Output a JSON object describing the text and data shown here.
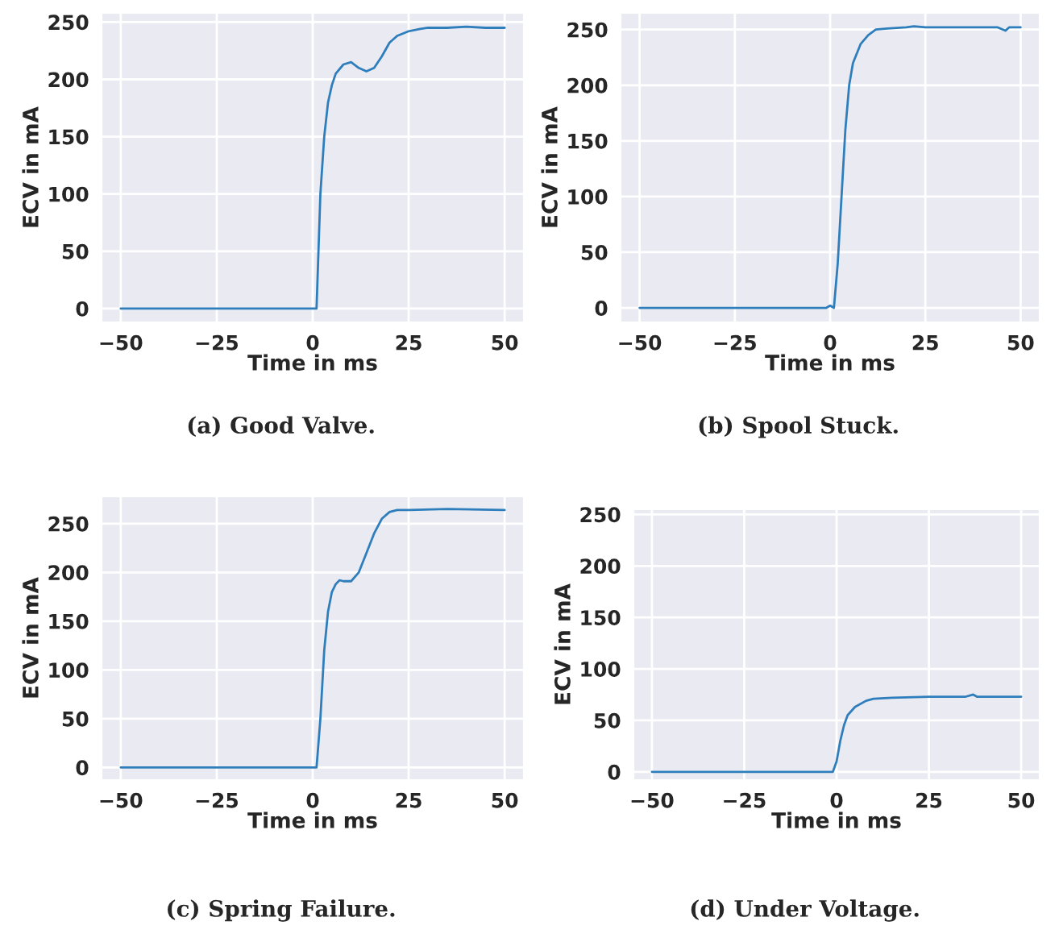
{
  "chart_data": [
    {
      "type": "line",
      "title": "(a) Good Valve.",
      "xlabel": "Time in ms",
      "ylabel": "ECV in mA",
      "grid": true,
      "xlim": [
        -55,
        55
      ],
      "ylim": [
        -12,
        258
      ],
      "xticks": [
        -50,
        -25,
        0,
        25,
        50
      ],
      "yticks": [
        0,
        50,
        100,
        150,
        200,
        250
      ],
      "x": [
        -50,
        -25,
        0,
        1,
        1.5,
        2,
        3,
        4,
        5,
        6,
        8,
        10,
        12,
        14,
        16,
        18,
        20,
        22,
        25,
        28,
        30,
        35,
        40,
        45,
        50
      ],
      "series": [
        {
          "color": "#2f7ebc",
          "values": [
            0,
            0,
            0,
            0,
            50,
            100,
            150,
            180,
            195,
            205,
            213,
            215,
            210,
            207,
            210,
            220,
            232,
            238,
            242,
            244,
            245,
            245,
            246,
            245,
            245
          ]
        }
      ]
    },
    {
      "type": "line",
      "title": "(b) Spool Stuck.",
      "xlabel": "Time in ms",
      "ylabel": "ECV in mA",
      "grid": true,
      "xlim": [
        -55,
        55
      ],
      "ylim": [
        -13,
        265
      ],
      "xticks": [
        -50,
        -25,
        0,
        25,
        50
      ],
      "yticks": [
        0,
        50,
        100,
        150,
        200,
        250
      ],
      "x": [
        -50,
        -25,
        -1,
        0,
        1,
        2,
        3,
        4,
        5,
        6,
        8,
        10,
        12,
        15,
        20,
        22,
        25,
        30,
        40,
        44,
        46,
        47,
        50
      ],
      "series": [
        {
          "color": "#2f7ebc",
          "values": [
            0,
            0,
            0,
            2,
            0,
            40,
            100,
            160,
            200,
            220,
            237,
            245,
            250,
            251,
            252,
            253,
            252,
            252,
            252,
            252,
            249,
            252,
            252
          ]
        }
      ]
    },
    {
      "type": "line",
      "title": "(c) Spring Failure.",
      "xlabel": "Time in ms",
      "ylabel": "ECV in mA",
      "grid": true,
      "xlim": [
        -55,
        55
      ],
      "ylim": [
        -13,
        278
      ],
      "xticks": [
        -50,
        -25,
        0,
        25,
        50
      ],
      "yticks": [
        0,
        50,
        100,
        150,
        200,
        250
      ],
      "x": [
        -50,
        -25,
        0,
        1,
        2,
        3,
        4,
        5,
        6,
        7,
        8,
        10,
        12,
        14,
        16,
        18,
        20,
        22,
        25,
        35,
        50
      ],
      "series": [
        {
          "color": "#2f7ebc",
          "values": [
            0,
            0,
            0,
            0,
            50,
            120,
            160,
            180,
            188,
            192,
            191,
            191,
            200,
            220,
            240,
            255,
            262,
            264,
            264,
            265,
            264
          ]
        }
      ]
    },
    {
      "type": "line",
      "title": "(d) Under Voltage.",
      "xlabel": "Time in ms",
      "ylabel": "ECV in mA",
      "grid": true,
      "xlim": [
        -55,
        55
      ],
      "ylim": [
        -8,
        255
      ],
      "xticks": [
        -50,
        -25,
        0,
        25,
        50
      ],
      "yticks": [
        0,
        50,
        100,
        150,
        200,
        250
      ],
      "x": [
        -50,
        -25,
        -1,
        0,
        1,
        2,
        3,
        5,
        8,
        10,
        15,
        25,
        35,
        37,
        38,
        45,
        50
      ],
      "series": [
        {
          "color": "#2f7ebc",
          "values": [
            0,
            0,
            0,
            10,
            30,
            45,
            55,
            63,
            69,
            71,
            72,
            73,
            73,
            75,
            73,
            73,
            73
          ]
        }
      ]
    }
  ]
}
